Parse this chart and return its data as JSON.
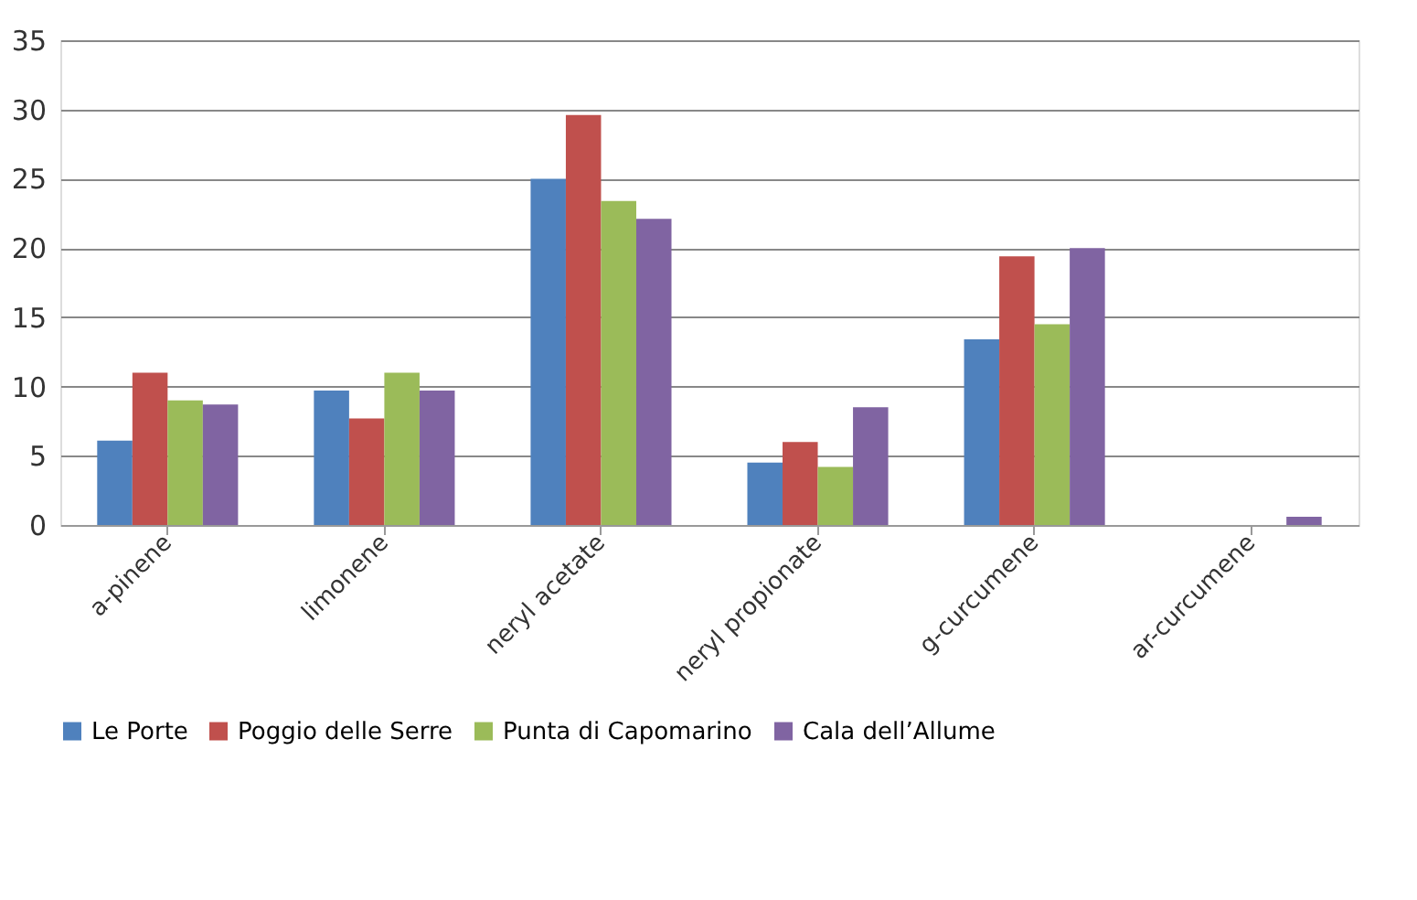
{
  "chart_data": {
    "type": "bar",
    "categories": [
      "a-pinene",
      "limonene",
      "neryl acetate",
      "neryl propionate",
      "g-curcumene",
      "ar-curcumene"
    ],
    "series": [
      {
        "name": "Le Porte",
        "color": "#4f81bd",
        "values": [
          6.1,
          9.7,
          25.0,
          4.5,
          13.4,
          0
        ]
      },
      {
        "name": "Poggio delle Serre",
        "color": "#c0504d",
        "values": [
          11.0,
          7.7,
          29.6,
          6.0,
          19.4,
          0
        ]
      },
      {
        "name": "Punta di Capomarino",
        "color": "#9bbb59",
        "values": [
          9.0,
          11.0,
          23.4,
          4.2,
          14.5,
          0
        ]
      },
      {
        "name": "Cala dell’Allume",
        "color": "#8064a2",
        "values": [
          8.7,
          9.7,
          22.1,
          8.5,
          20.0,
          0.6
        ]
      }
    ],
    "ylim": [
      0,
      35
    ],
    "yticks": [
      0,
      5,
      10,
      15,
      20,
      25,
      30,
      35
    ],
    "grid": "y",
    "legend": "bottom"
  }
}
